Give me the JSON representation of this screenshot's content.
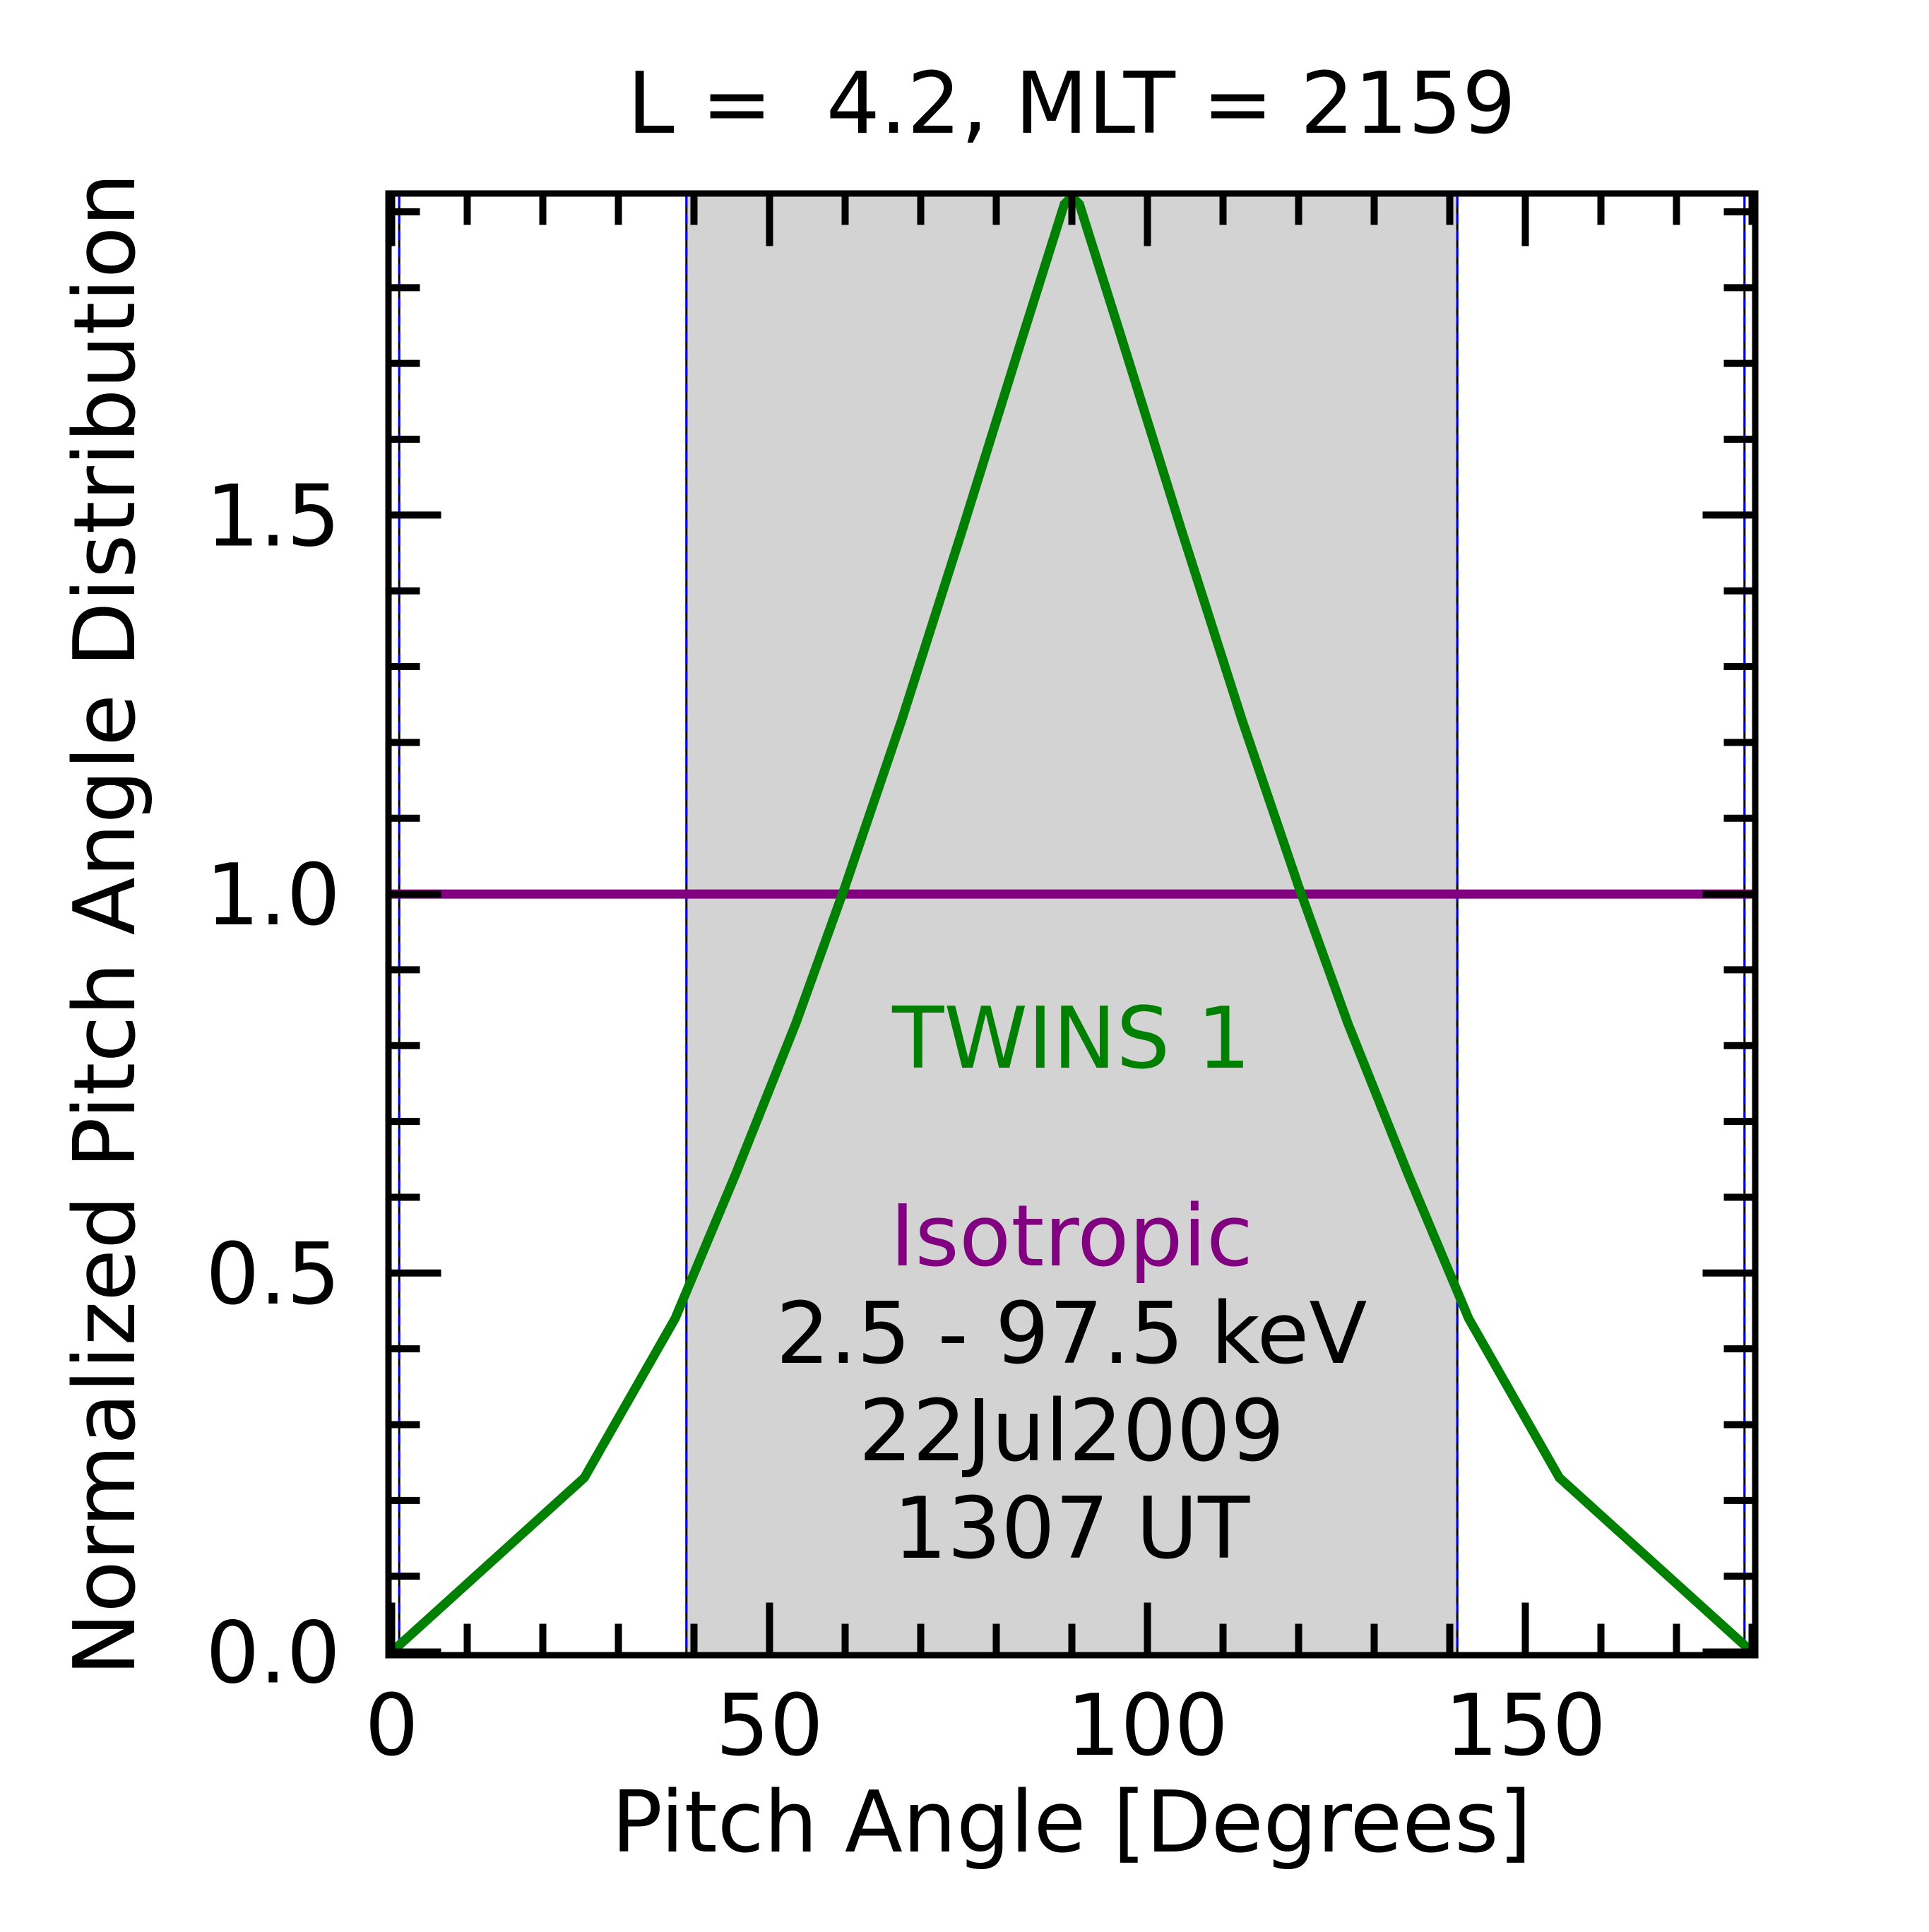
{
  "chart_data": {
    "type": "line",
    "title": "L =  4.2, MLT = 2159",
    "xlabel": "Pitch Angle [Degrees]",
    "ylabel": "Normalized Pitch Angle Distribution",
    "xlim": [
      0,
      180
    ],
    "ylim": [
      0,
      1.92
    ],
    "xticks": [
      0,
      50,
      100,
      150
    ],
    "xtick_labels": [
      "0",
      "50",
      "100",
      "150"
    ],
    "yticks": [
      0.0,
      0.5,
      1.0,
      1.5
    ],
    "ytick_labels": [
      "0.0",
      "0.5",
      "1.0",
      "1.5"
    ],
    "x_minor_step": 10,
    "y_minor_step": 0.1,
    "shaded_region": {
      "x_start": 39,
      "x_end": 141,
      "color": "#d3d3d3"
    },
    "vertical_lines": [
      1,
      39,
      141,
      179
    ],
    "series": [
      {
        "name": "TWINS 1",
        "color": "#008000",
        "x": [
          0,
          25.5,
          37.5,
          45.5,
          53.5,
          60,
          67.5,
          75.5,
          83,
          89,
          90,
          91,
          97,
          104.5,
          112.5,
          120,
          126.5,
          134.5,
          142.5,
          154.5,
          180
        ],
        "y": [
          0.0,
          0.23,
          0.44,
          0.63,
          0.83,
          1.01,
          1.23,
          1.48,
          1.72,
          1.91,
          1.92,
          1.91,
          1.72,
          1.48,
          1.23,
          1.01,
          0.83,
          0.63,
          0.44,
          0.23,
          0.0
        ]
      },
      {
        "name": "Isotropic",
        "color": "#800080",
        "x": [
          0,
          180
        ],
        "y": [
          1.0,
          1.0
        ]
      }
    ],
    "annotations": {
      "series_label_1": "TWINS 1",
      "series_label_2": "Isotropic",
      "energy_range": "2.5 - 97.5 keV",
      "date": "22Jul2009",
      "time": "1307 UT"
    }
  }
}
